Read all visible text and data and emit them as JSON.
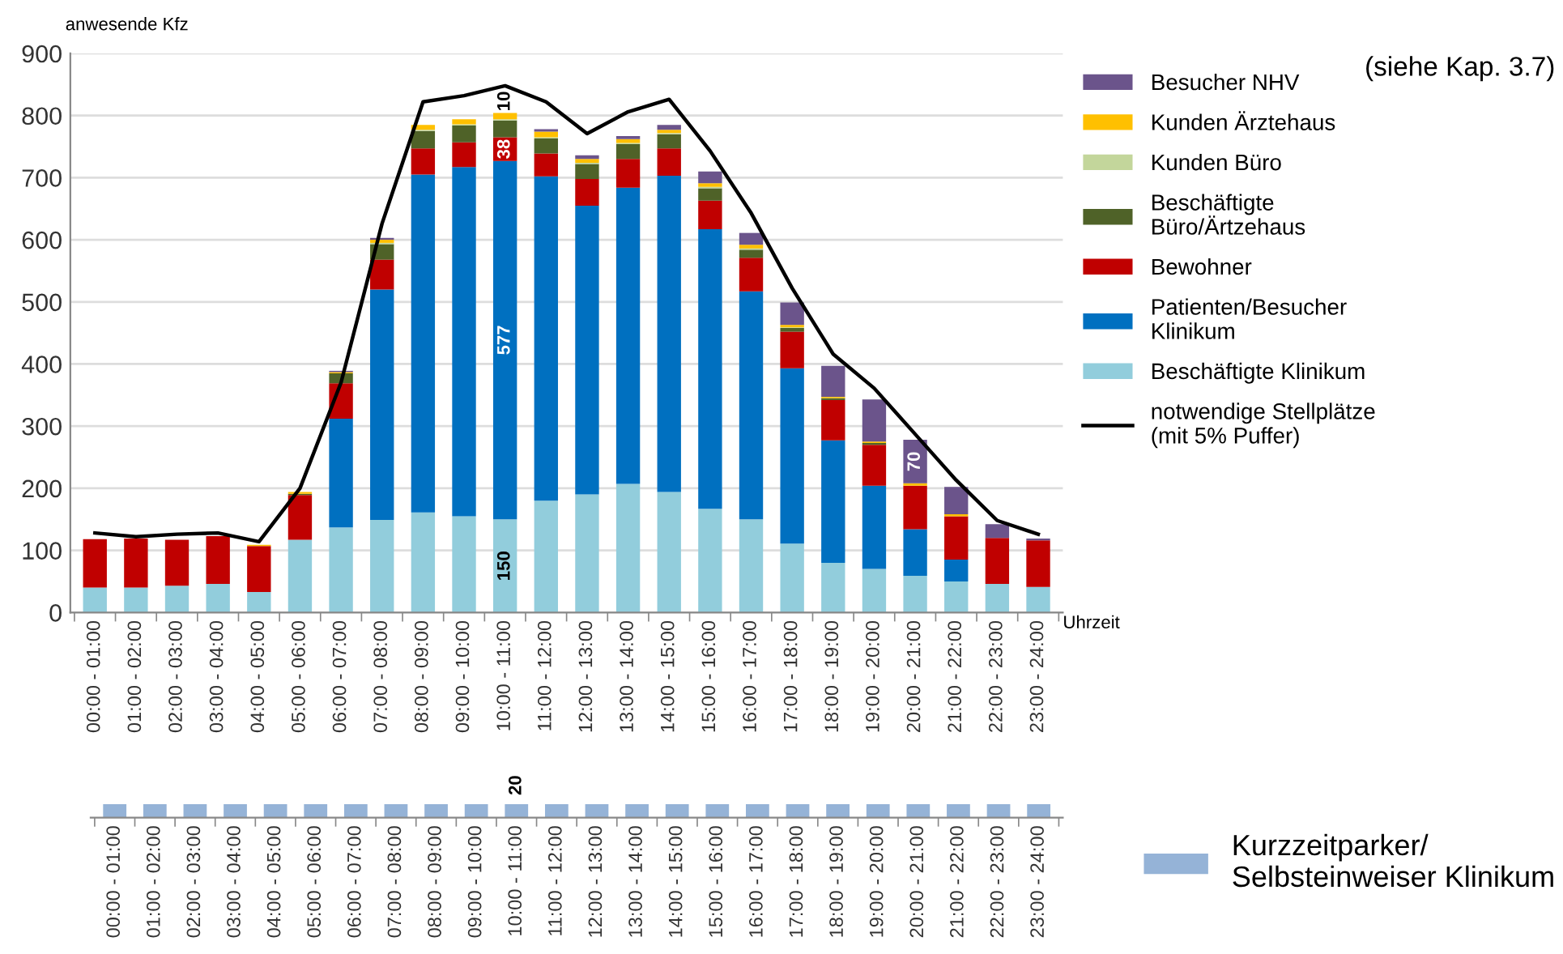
{
  "chart_data": [
    {
      "type": "bar",
      "stacked": true,
      "ylabel": "anwesende Kfz",
      "xlabel": "Uhrzeit",
      "annotations": [
        "(siehe Kap. 3.7)"
      ],
      "categories": [
        "00:00 - 01:00",
        "01:00 - 02:00",
        "02:00 - 03:00",
        "03:00 - 04:00",
        "04:00 - 05:00",
        "05:00 - 06:00",
        "06:00 - 07:00",
        "07:00 - 08:00",
        "08:00 - 09:00",
        "09:00 - 10:00",
        "10:00 - 11:00",
        "11:00 - 12:00",
        "12:00 - 13:00",
        "13:00 - 14:00",
        "14:00 - 15:00",
        "15:00 - 16:00",
        "16:00 - 17:00",
        "17:00 - 18:00",
        "18:00 - 19:00",
        "19:00 - 20:00",
        "20:00 - 21:00",
        "21:00 - 22:00",
        "22:00 - 23:00",
        "23:00 - 24:00"
      ],
      "ylim": [
        0,
        900
      ],
      "yticks": [
        0,
        100,
        200,
        300,
        400,
        500,
        600,
        700,
        800,
        900
      ],
      "grid": "y",
      "legend": "right",
      "series": [
        {
          "name": "Beschäftigte Klinikum",
          "color": "#92cddc",
          "values": [
            40,
            40,
            43,
            46,
            33,
            117,
            137,
            149,
            161,
            155,
            150,
            180,
            190,
            207,
            194,
            167,
            150,
            111,
            80,
            70,
            59,
            50,
            46,
            41
          ],
          "value_labels": [
            null,
            null,
            null,
            null,
            null,
            null,
            null,
            null,
            null,
            null,
            "150",
            null,
            null,
            null,
            null,
            null,
            null,
            null,
            null,
            null,
            null,
            null,
            null,
            null
          ]
        },
        {
          "name": "Patienten/Besucher\nKlinikum",
          "color": "#0070c0",
          "values": [
            0,
            0,
            0,
            0,
            0,
            0,
            175,
            371,
            544,
            562,
            577,
            522,
            465,
            477,
            509,
            450,
            367,
            282,
            197,
            134,
            75,
            35,
            0,
            0
          ],
          "value_labels": [
            null,
            null,
            null,
            null,
            null,
            null,
            null,
            null,
            null,
            null,
            "577",
            null,
            null,
            null,
            null,
            null,
            null,
            null,
            null,
            null,
            null,
            null,
            null,
            null
          ]
        },
        {
          "name": "Bewohner",
          "color": "#c00000",
          "values": [
            78,
            79,
            74,
            77,
            74,
            72,
            57,
            48,
            42,
            40,
            38,
            37,
            43,
            46,
            44,
            46,
            54,
            59,
            65,
            66,
            70,
            70,
            74,
            75
          ],
          "value_labels": [
            null,
            null,
            null,
            null,
            null,
            null,
            null,
            null,
            null,
            null,
            "38",
            null,
            null,
            null,
            null,
            null,
            null,
            null,
            null,
            null,
            null,
            null,
            null,
            null
          ]
        },
        {
          "name": "Beschäftigte\nBüro/Ärtzehaus",
          "color": "#4f6228",
          "values": [
            0,
            0,
            0,
            0,
            0,
            2,
            16,
            25,
            28,
            27,
            27,
            24,
            24,
            24,
            23,
            20,
            13,
            6,
            3,
            3,
            0,
            0,
            0,
            0
          ]
        },
        {
          "name": "Kunden Büro",
          "color": "#c3d69b",
          "values": [
            0,
            0,
            0,
            0,
            0,
            0,
            0,
            2,
            2,
            2,
            2,
            2,
            2,
            2,
            2,
            2,
            2,
            1,
            0,
            0,
            0,
            0,
            0,
            0
          ]
        },
        {
          "name": "Kunden Ärztehaus",
          "color": "#ffc000",
          "values": [
            0,
            0,
            0,
            0,
            2,
            3,
            2,
            5,
            8,
            8,
            10,
            9,
            6,
            6,
            5,
            6,
            6,
            4,
            2,
            2,
            4,
            3,
            0,
            0
          ],
          "value_labels": [
            null,
            null,
            null,
            null,
            null,
            null,
            null,
            null,
            null,
            null,
            "10",
            null,
            null,
            null,
            null,
            null,
            null,
            null,
            null,
            null,
            null,
            null,
            null,
            null
          ]
        },
        {
          "name": "Besucher NHV",
          "color": "#6b548b",
          "values": [
            0,
            0,
            0,
            0,
            0,
            0,
            2,
            3,
            0,
            0,
            0,
            4,
            6,
            5,
            8,
            19,
            19,
            36,
            50,
            68,
            70,
            44,
            22,
            3
          ],
          "value_labels": [
            null,
            null,
            null,
            null,
            null,
            null,
            null,
            null,
            null,
            null,
            null,
            null,
            null,
            null,
            null,
            null,
            null,
            null,
            null,
            null,
            "70",
            null,
            null,
            null
          ]
        },
        {
          "name": "notwendige Stellplätze\n(mit 5% Puffer)",
          "type": "line",
          "color": "#000000",
          "values": [
            128,
            122,
            126,
            128,
            114,
            200,
            370,
            626,
            822,
            832,
            848,
            822,
            771,
            806,
            826,
            743,
            643,
            522,
            416,
            361,
            287,
            213,
            148,
            126
          ]
        }
      ]
    },
    {
      "type": "bar",
      "tick_labels": "x",
      "legend": "right",
      "categories": [
        "00:00 - 01:00",
        "01:00 - 02:00",
        "02:00 - 03:00",
        "03:00 - 04:00",
        "04:00 - 05:00",
        "05:00 - 06:00",
        "06:00 - 07:00",
        "07:00 - 08:00",
        "08:00 - 09:00",
        "09:00 - 10:00",
        "10:00 - 11:00",
        "11:00 - 12:00",
        "12:00 - 13:00",
        "13:00 - 14:00",
        "14:00 - 15:00",
        "15:00 - 16:00",
        "16:00 - 17:00",
        "17:00 - 18:00",
        "18:00 - 19:00",
        "19:00 - 20:00",
        "20:00 - 21:00",
        "21:00 - 22:00",
        "22:00 - 23:00",
        "23:00 - 24:00"
      ],
      "series": [
        {
          "name": "Kurzzeitparker/\nSelbsteinweiser Klinikum",
          "color": "#95b3d7",
          "values": [
            20,
            20,
            20,
            20,
            20,
            20,
            20,
            20,
            20,
            20,
            20,
            20,
            20,
            20,
            20,
            20,
            20,
            20,
            20,
            20,
            20,
            20,
            20,
            20
          ],
          "value_labels": [
            null,
            null,
            null,
            null,
            null,
            null,
            null,
            null,
            null,
            null,
            "20",
            null,
            null,
            null,
            null,
            null,
            null,
            null,
            null,
            null,
            null,
            null,
            null,
            null
          ]
        }
      ]
    }
  ]
}
